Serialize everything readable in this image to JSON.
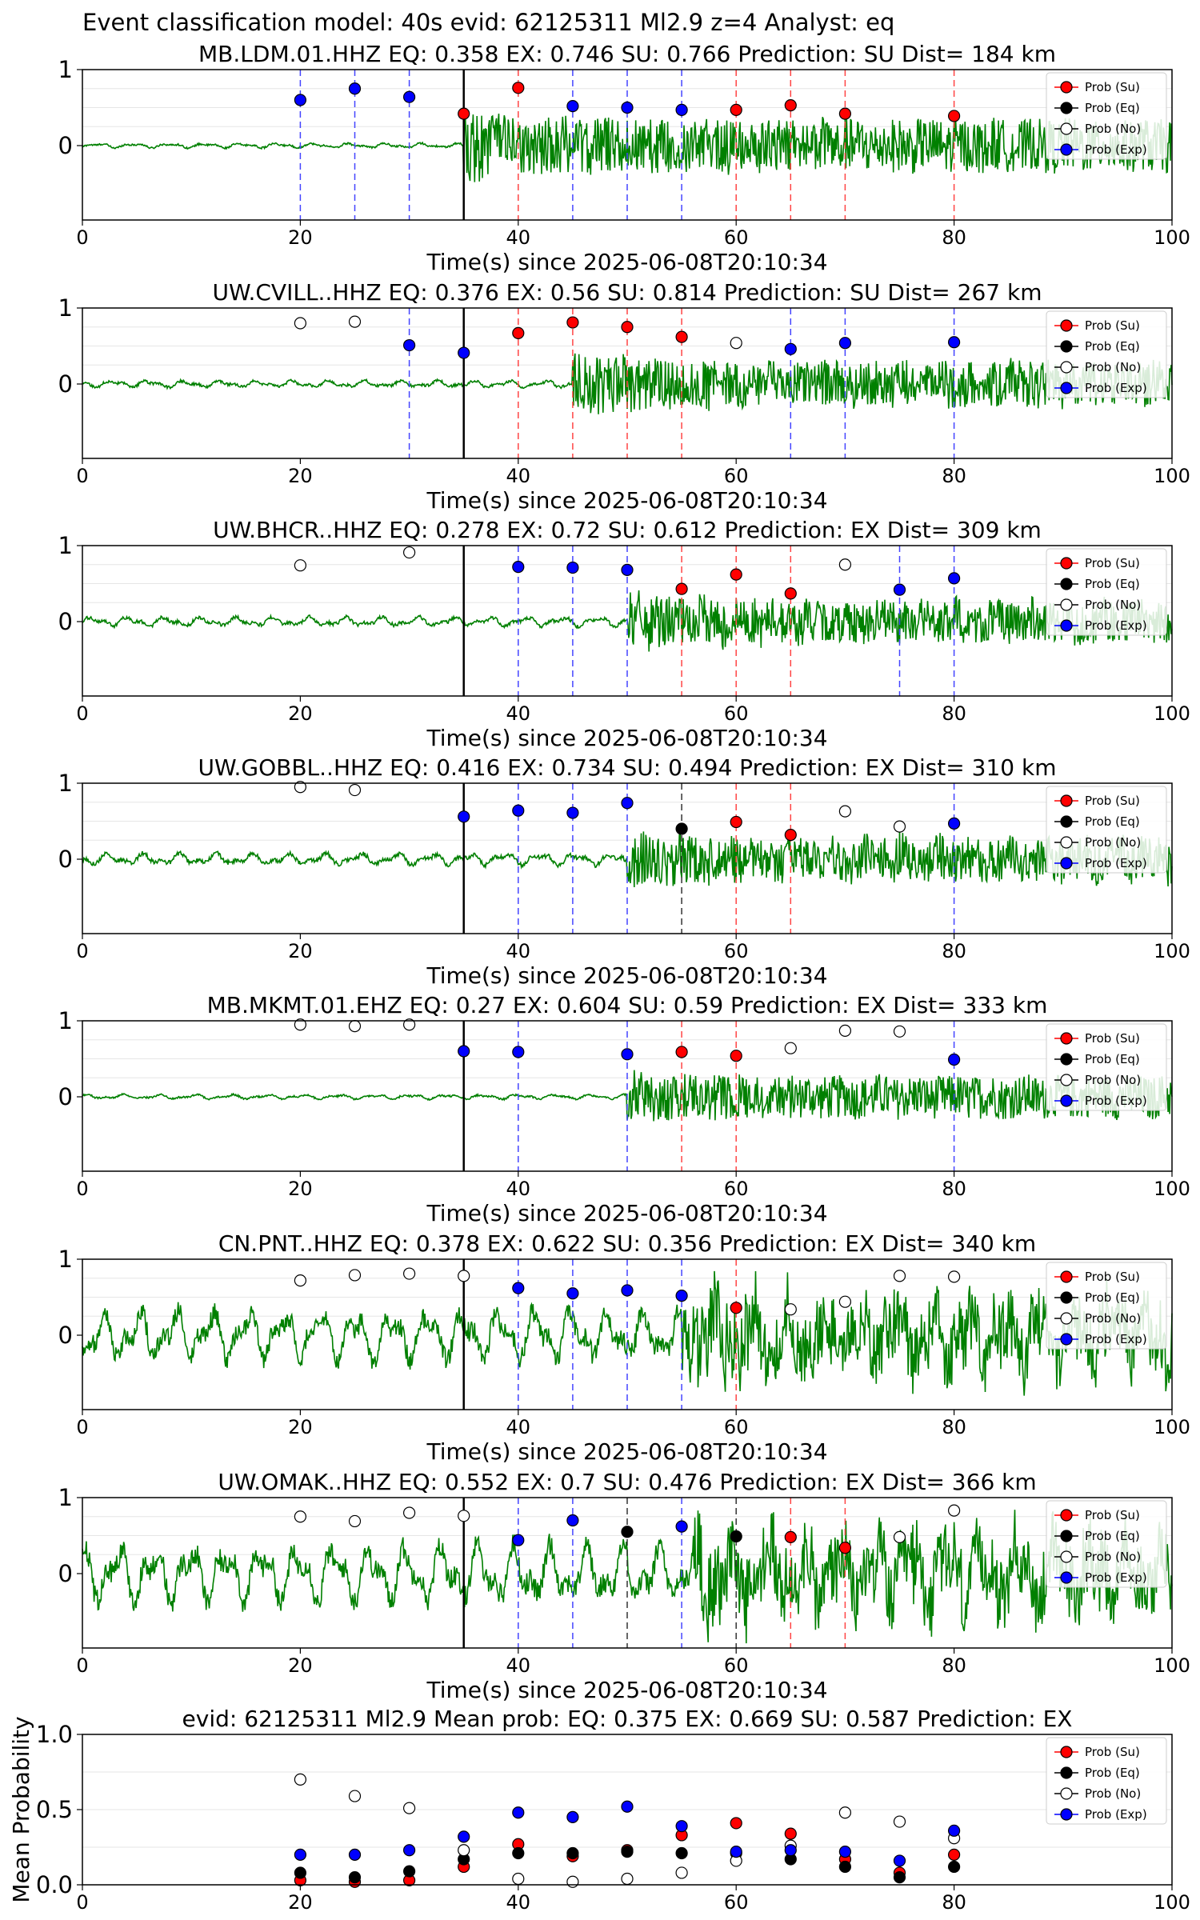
{
  "suptitle": "Event classification model: 40s evid: 62125311 Ml2.9 z=4 Analyst: eq",
  "colors": {
    "su": "#ff0000",
    "eq": "#000000",
    "no": "#ffffff",
    "exp": "#0000ff",
    "waveform": "#008000"
  },
  "chart_data": [
    {
      "type": "scatter",
      "title": "MB.LDM.01.HHZ   EQ: 0.358  EX: 0.746  SU: 0.766   Prediction: SU    Dist= 184 km",
      "xlabel": "Time(s) since 2025-06-08T20:10:34",
      "xlim": [
        0,
        100
      ],
      "x_ticks": [
        "0",
        "20",
        "40",
        "60",
        "80",
        "100"
      ],
      "y_ticks": [
        "0",
        "1"
      ],
      "onset": 35,
      "noise_amp": 0.02,
      "signal_amp": 0.35,
      "legend": [
        "Prob (Su)",
        "Prob (Eq)",
        "Prob (No)",
        "Prob (Exp)"
      ],
      "points": [
        {
          "x": 20,
          "y": 0.6,
          "cls": "exp"
        },
        {
          "x": 25,
          "y": 0.75,
          "cls": "exp"
        },
        {
          "x": 30,
          "y": 0.64,
          "cls": "exp"
        },
        {
          "x": 35,
          "y": 0.42,
          "cls": "su"
        },
        {
          "x": 40,
          "y": 0.76,
          "cls": "su"
        },
        {
          "x": 45,
          "y": 0.52,
          "cls": "exp"
        },
        {
          "x": 50,
          "y": 0.5,
          "cls": "exp"
        },
        {
          "x": 55,
          "y": 0.47,
          "cls": "exp"
        },
        {
          "x": 60,
          "y": 0.47,
          "cls": "su"
        },
        {
          "x": 65,
          "y": 0.53,
          "cls": "su"
        },
        {
          "x": 70,
          "y": 0.42,
          "cls": "su"
        },
        {
          "x": 80,
          "y": 0.39,
          "cls": "su"
        }
      ]
    },
    {
      "type": "scatter",
      "title": "UW.CVILL..HHZ   EQ: 0.376  EX: 0.56  SU: 0.814   Prediction: SU    Dist= 267 km",
      "xlabel": "Time(s) since 2025-06-08T20:10:34",
      "xlim": [
        0,
        100
      ],
      "x_ticks": [
        "0",
        "20",
        "40",
        "60",
        "80",
        "100"
      ],
      "y_ticks": [
        "0",
        "1"
      ],
      "onset": 45,
      "noise_amp": 0.03,
      "signal_amp": 0.3,
      "legend": [
        "Prob (Su)",
        "Prob (Eq)",
        "Prob (No)",
        "Prob (Exp)"
      ],
      "points": [
        {
          "x": 20,
          "y": 0.8,
          "cls": "no"
        },
        {
          "x": 25,
          "y": 0.82,
          "cls": "no"
        },
        {
          "x": 30,
          "y": 0.51,
          "cls": "exp"
        },
        {
          "x": 35,
          "y": 0.41,
          "cls": "exp"
        },
        {
          "x": 40,
          "y": 0.67,
          "cls": "su"
        },
        {
          "x": 45,
          "y": 0.81,
          "cls": "su"
        },
        {
          "x": 50,
          "y": 0.75,
          "cls": "su"
        },
        {
          "x": 55,
          "y": 0.62,
          "cls": "su"
        },
        {
          "x": 60,
          "y": 0.54,
          "cls": "no"
        },
        {
          "x": 65,
          "y": 0.46,
          "cls": "exp"
        },
        {
          "x": 70,
          "y": 0.54,
          "cls": "exp"
        },
        {
          "x": 80,
          "y": 0.55,
          "cls": "exp"
        }
      ]
    },
    {
      "type": "scatter",
      "title": "UW.BHCR..HHZ   EQ: 0.278  EX: 0.72  SU: 0.612   Prediction: EX    Dist= 309 km",
      "xlabel": "Time(s) since 2025-06-08T20:10:34",
      "xlim": [
        0,
        100
      ],
      "x_ticks": [
        "0",
        "20",
        "40",
        "60",
        "80",
        "100"
      ],
      "y_ticks": [
        "0",
        "1"
      ],
      "onset": 50,
      "noise_amp": 0.04,
      "signal_amp": 0.28,
      "legend": [
        "Prob (Su)",
        "Prob (Eq)",
        "Prob (No)",
        "Prob (Exp)"
      ],
      "points": [
        {
          "x": 20,
          "y": 0.74,
          "cls": "no"
        },
        {
          "x": 30,
          "y": 0.91,
          "cls": "no"
        },
        {
          "x": 40,
          "y": 0.72,
          "cls": "exp"
        },
        {
          "x": 45,
          "y": 0.71,
          "cls": "exp"
        },
        {
          "x": 50,
          "y": 0.68,
          "cls": "exp"
        },
        {
          "x": 55,
          "y": 0.43,
          "cls": "su"
        },
        {
          "x": 60,
          "y": 0.62,
          "cls": "su"
        },
        {
          "x": 65,
          "y": 0.37,
          "cls": "su"
        },
        {
          "x": 70,
          "y": 0.75,
          "cls": "no"
        },
        {
          "x": 75,
          "y": 0.42,
          "cls": "exp"
        },
        {
          "x": 80,
          "y": 0.57,
          "cls": "exp"
        }
      ]
    },
    {
      "type": "scatter",
      "title": "UW.GOBBL..HHZ   EQ: 0.416  EX: 0.734  SU: 0.494   Prediction: EX    Dist= 310 km",
      "xlabel": "Time(s) since 2025-06-08T20:10:34",
      "xlim": [
        0,
        100
      ],
      "x_ticks": [
        "0",
        "20",
        "40",
        "60",
        "80",
        "100"
      ],
      "y_ticks": [
        "0",
        "1"
      ],
      "onset": 50,
      "noise_amp": 0.05,
      "signal_amp": 0.28,
      "legend": [
        "Prob (Su)",
        "Prob (Eq)",
        "Prob (No)",
        "Prob (Exp)"
      ],
      "points": [
        {
          "x": 20,
          "y": 0.95,
          "cls": "no"
        },
        {
          "x": 25,
          "y": 0.91,
          "cls": "no"
        },
        {
          "x": 35,
          "y": 0.56,
          "cls": "exp"
        },
        {
          "x": 40,
          "y": 0.64,
          "cls": "exp"
        },
        {
          "x": 45,
          "y": 0.61,
          "cls": "exp"
        },
        {
          "x": 50,
          "y": 0.74,
          "cls": "exp"
        },
        {
          "x": 55,
          "y": 0.4,
          "cls": "eq"
        },
        {
          "x": 60,
          "y": 0.49,
          "cls": "su"
        },
        {
          "x": 65,
          "y": 0.32,
          "cls": "su"
        },
        {
          "x": 70,
          "y": 0.63,
          "cls": "no"
        },
        {
          "x": 75,
          "y": 0.43,
          "cls": "no"
        },
        {
          "x": 80,
          "y": 0.47,
          "cls": "exp"
        }
      ]
    },
    {
      "type": "scatter",
      "title": "MB.MKMT.01.EHZ   EQ: 0.27  EX: 0.604  SU: 0.59   Prediction: EX    Dist= 333 km",
      "xlabel": "Time(s) since 2025-06-08T20:10:34",
      "xlim": [
        0,
        100
      ],
      "x_ticks": [
        "0",
        "20",
        "40",
        "60",
        "80",
        "100"
      ],
      "y_ticks": [
        "0",
        "1"
      ],
      "onset": 50,
      "noise_amp": 0.02,
      "signal_amp": 0.28,
      "legend": [
        "Prob (Su)",
        "Prob (Eq)",
        "Prob (No)",
        "Prob (Exp)"
      ],
      "points": [
        {
          "x": 20,
          "y": 0.95,
          "cls": "no"
        },
        {
          "x": 25,
          "y": 0.93,
          "cls": "no"
        },
        {
          "x": 30,
          "y": 0.95,
          "cls": "no"
        },
        {
          "x": 35,
          "y": 0.6,
          "cls": "exp"
        },
        {
          "x": 40,
          "y": 0.59,
          "cls": "exp"
        },
        {
          "x": 50,
          "y": 0.56,
          "cls": "exp"
        },
        {
          "x": 55,
          "y": 0.59,
          "cls": "su"
        },
        {
          "x": 60,
          "y": 0.54,
          "cls": "su"
        },
        {
          "x": 65,
          "y": 0.64,
          "cls": "no"
        },
        {
          "x": 70,
          "y": 0.87,
          "cls": "no"
        },
        {
          "x": 75,
          "y": 0.86,
          "cls": "no"
        },
        {
          "x": 80,
          "y": 0.49,
          "cls": "exp"
        }
      ]
    },
    {
      "type": "scatter",
      "title": "CN.PNT..HHZ   EQ: 0.378  EX: 0.622  SU: 0.356   Prediction: EX    Dist= 340 km",
      "xlabel": "Time(s) since 2025-06-08T20:10:34",
      "xlim": [
        0,
        100
      ],
      "x_ticks": [
        "0",
        "20",
        "40",
        "60",
        "80",
        "100"
      ],
      "y_ticks": [
        "0",
        "1"
      ],
      "onset": 55,
      "noise_amp": 0.22,
      "signal_amp": 0.45,
      "legend": [
        "Prob (Su)",
        "Prob (Eq)",
        "Prob (No)",
        "Prob (Exp)"
      ],
      "points": [
        {
          "x": 20,
          "y": 0.72,
          "cls": "no"
        },
        {
          "x": 25,
          "y": 0.79,
          "cls": "no"
        },
        {
          "x": 30,
          "y": 0.81,
          "cls": "no"
        },
        {
          "x": 35,
          "y": 0.78,
          "cls": "no"
        },
        {
          "x": 40,
          "y": 0.62,
          "cls": "exp"
        },
        {
          "x": 45,
          "y": 0.55,
          "cls": "exp"
        },
        {
          "x": 50,
          "y": 0.59,
          "cls": "exp"
        },
        {
          "x": 55,
          "y": 0.52,
          "cls": "exp"
        },
        {
          "x": 60,
          "y": 0.36,
          "cls": "su"
        },
        {
          "x": 65,
          "y": 0.34,
          "cls": "no"
        },
        {
          "x": 70,
          "y": 0.44,
          "cls": "no"
        },
        {
          "x": 75,
          "y": 0.78,
          "cls": "no"
        },
        {
          "x": 80,
          "y": 0.77,
          "cls": "no"
        }
      ]
    },
    {
      "type": "scatter",
      "title": "UW.OMAK..HHZ   EQ: 0.552  EX: 0.7  SU: 0.476   Prediction: EX    Dist= 366 km",
      "xlabel": "Time(s) since 2025-06-08T20:10:34",
      "xlim": [
        0,
        100
      ],
      "x_ticks": [
        "0",
        "20",
        "40",
        "60",
        "80",
        "100"
      ],
      "y_ticks": [
        "0",
        "1"
      ],
      "onset": 56,
      "noise_amp": 0.25,
      "signal_amp": 0.45,
      "legend": [
        "Prob (Su)",
        "Prob (Eq)",
        "Prob (No)",
        "Prob (Exp)"
      ],
      "points": [
        {
          "x": 20,
          "y": 0.75,
          "cls": "no"
        },
        {
          "x": 25,
          "y": 0.69,
          "cls": "no"
        },
        {
          "x": 30,
          "y": 0.8,
          "cls": "no"
        },
        {
          "x": 35,
          "y": 0.76,
          "cls": "no"
        },
        {
          "x": 40,
          "y": 0.44,
          "cls": "exp"
        },
        {
          "x": 45,
          "y": 0.7,
          "cls": "exp"
        },
        {
          "x": 50,
          "y": 0.55,
          "cls": "eq"
        },
        {
          "x": 55,
          "y": 0.62,
          "cls": "exp"
        },
        {
          "x": 60,
          "y": 0.49,
          "cls": "eq"
        },
        {
          "x": 65,
          "y": 0.48,
          "cls": "su"
        },
        {
          "x": 70,
          "y": 0.34,
          "cls": "su"
        },
        {
          "x": 75,
          "y": 0.48,
          "cls": "no"
        },
        {
          "x": 80,
          "y": 0.83,
          "cls": "no"
        }
      ]
    },
    {
      "type": "scatter",
      "title": "evid: 62125311  Ml2.9   Mean prob:   EQ: 0.375  EX: 0.669  SU: 0.587   Prediction: EX",
      "xlabel": "",
      "ylabel": "Mean Probability",
      "xlim": [
        0,
        100
      ],
      "ylim": [
        0,
        1
      ],
      "x_ticks": [
        "0",
        "20",
        "40",
        "60",
        "80",
        "100"
      ],
      "y_ticks": [
        "0.0",
        "0.5",
        "1.0"
      ],
      "legend": [
        "Prob (Su)",
        "Prob (Eq)",
        "Prob (No)",
        "Prob (Exp)"
      ],
      "x": [
        20,
        25,
        30,
        35,
        40,
        45,
        50,
        55,
        60,
        65,
        70,
        75,
        80
      ],
      "series": [
        {
          "name": "Prob (Su)",
          "cls": "su",
          "values": [
            0.03,
            0.02,
            0.03,
            0.12,
            0.27,
            0.19,
            0.23,
            0.33,
            0.41,
            0.34,
            0.17,
            0.08,
            0.2
          ]
        },
        {
          "name": "Prob (Eq)",
          "cls": "eq",
          "values": [
            0.08,
            0.05,
            0.09,
            0.17,
            0.21,
            0.21,
            0.22,
            0.21,
            0.21,
            0.17,
            0.12,
            0.05,
            0.12
          ]
        },
        {
          "name": "Prob (No)",
          "cls": "no",
          "values": [
            0.7,
            0.59,
            0.51,
            0.23,
            0.04,
            0.02,
            0.04,
            0.08,
            0.16,
            0.26,
            0.48,
            0.42,
            0.31
          ]
        },
        {
          "name": "Prob (Exp)",
          "cls": "exp",
          "values": [
            0.2,
            0.2,
            0.23,
            0.32,
            0.48,
            0.45,
            0.52,
            0.39,
            0.22,
            0.23,
            0.22,
            0.16,
            0.36
          ]
        }
      ]
    }
  ]
}
